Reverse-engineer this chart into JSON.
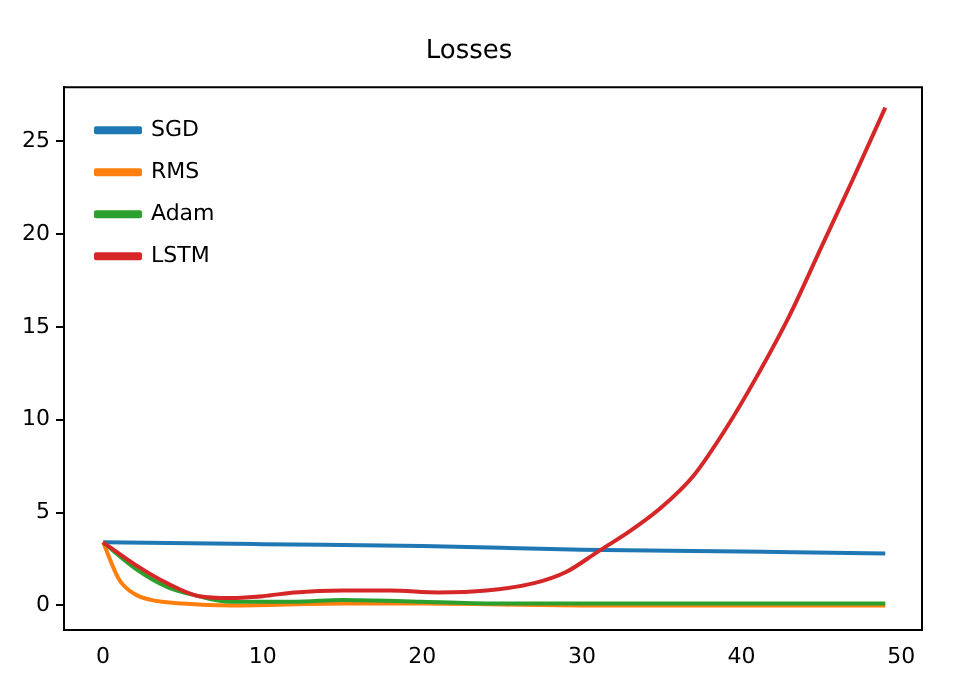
{
  "chart_data": {
    "type": "line",
    "title": "Losses",
    "xlim": [
      -2.45,
      51.3
    ],
    "ylim": [
      -1.3,
      27.9
    ],
    "xticks": [
      0,
      10,
      20,
      30,
      40,
      50
    ],
    "yticks": [
      0,
      5,
      10,
      15,
      20,
      25
    ],
    "grid": false,
    "legend": "top left",
    "marker": "none",
    "line_style": "solid",
    "series": [
      {
        "name": "SGD",
        "color": "#1f77b4",
        "x": [
          0,
          10,
          20,
          30,
          40,
          49
        ],
        "values": [
          3.4,
          3.3,
          3.2,
          3.0,
          2.9,
          2.8
        ]
      },
      {
        "name": "RMS",
        "color": "#ff7f0e",
        "x": [
          0,
          1,
          2,
          3,
          5,
          8,
          15,
          20,
          30,
          49
        ],
        "values": [
          3.4,
          1.4,
          0.6,
          0.3,
          0.1,
          0,
          0.1,
          0.1,
          0,
          0
        ]
      },
      {
        "name": "Adam",
        "color": "#2ca02c",
        "x": [
          0,
          2,
          4,
          6,
          8,
          12,
          15,
          20,
          25,
          49
        ],
        "values": [
          3.4,
          2.0,
          1.0,
          0.5,
          0.2,
          0.2,
          0.3,
          0.2,
          0.1,
          0.1
        ]
      },
      {
        "name": "LSTM",
        "color": "#d62728",
        "x": [
          0,
          2,
          4,
          6,
          8,
          10,
          12,
          15,
          18,
          21,
          24,
          27,
          29,
          31,
          33,
          35,
          37,
          39,
          41,
          43,
          45,
          47,
          49
        ],
        "values": [
          3.4,
          2.2,
          1.2,
          0.5,
          0.4,
          0.5,
          0.7,
          0.8,
          0.8,
          0.7,
          0.8,
          1.2,
          1.8,
          2.9,
          4.0,
          5.3,
          7.0,
          9.5,
          12.4,
          15.6,
          19.3,
          23.0,
          26.8
        ]
      }
    ]
  }
}
